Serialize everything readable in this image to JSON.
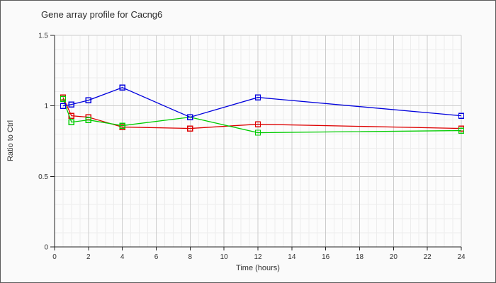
{
  "window": {
    "background_color": "#fafafa",
    "border_color": "#5a5a5a",
    "plot_background_color": "#fcfcfc"
  },
  "chart_data": {
    "type": "line",
    "title": "Gene array profile for Cacng6",
    "xlabel": "Time (hours)",
    "ylabel": "Ratio to Ctrl",
    "xlim": [
      0,
      24
    ],
    "ylim": [
      0,
      1.5
    ],
    "x_ticks": [
      0,
      2,
      4,
      6,
      8,
      10,
      12,
      14,
      16,
      18,
      20,
      22,
      24
    ],
    "y_ticks": [
      0,
      0.5,
      1,
      1.5
    ],
    "y_tick_labels": [
      "0",
      "0.5",
      "1",
      "1.5"
    ],
    "grid": {
      "minor_x_step": 0.5,
      "minor_y_step": 0.1,
      "major_x_step": 2,
      "major_y_step": 0.5,
      "major_color": "#cccccc",
      "minor_color": "#ededed"
    },
    "axis_color": "#222222",
    "marker": "open-square",
    "legend": "none",
    "x": [
      0.5,
      1,
      2,
      4,
      8,
      12,
      24
    ],
    "series": [
      {
        "name": "red-series",
        "color": "#dd0000",
        "values": [
          1.06,
          0.93,
          0.92,
          0.85,
          0.84,
          0.87,
          0.84
        ]
      },
      {
        "name": "green-series",
        "color": "#00cc00",
        "values": [
          1.05,
          0.885,
          0.9,
          0.86,
          0.92,
          0.81,
          0.825
        ]
      },
      {
        "name": "blue-series",
        "color": "#0000dd",
        "values": [
          1.0,
          1.01,
          1.04,
          1.13,
          0.92,
          1.06,
          0.93
        ]
      }
    ]
  }
}
